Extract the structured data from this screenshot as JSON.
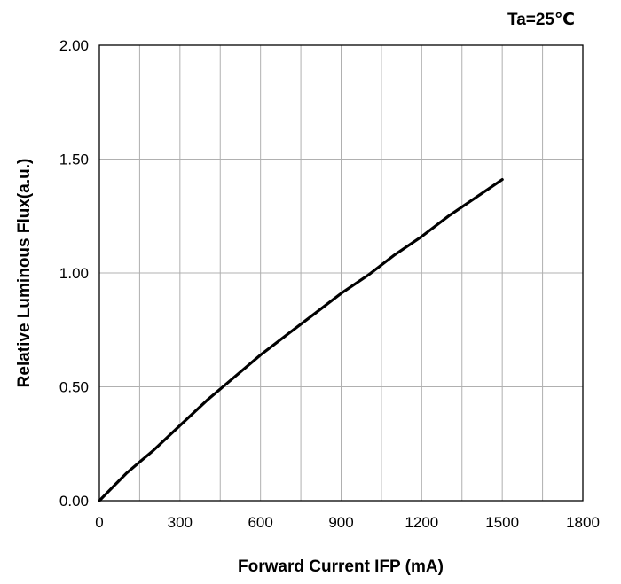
{
  "chart_data": {
    "type": "line",
    "title": "",
    "annotation": "Ta=25℃",
    "xlabel": "Forward Current IFP (mA)",
    "ylabel": "Relative Luminous Flux(a.u.)",
    "xlim": [
      0,
      1800
    ],
    "ylim": [
      0,
      2.0
    ],
    "x_ticks": [
      "0",
      "300",
      "600",
      "900",
      "1200",
      "1500",
      "1800"
    ],
    "y_ticks": [
      "0.00",
      "0.50",
      "1.00",
      "1.50",
      "2.00"
    ],
    "x_tick_values": [
      0,
      300,
      600,
      900,
      1200,
      1500,
      1800
    ],
    "y_tick_values": [
      0,
      0.5,
      1.0,
      1.5,
      2.0
    ],
    "x_minor_grid_step": 150,
    "grid": true,
    "legend": "none",
    "colors": {
      "line": "#000000",
      "grid": "#b0b0b0",
      "frame": "#000000"
    },
    "series": [
      {
        "x": [
          0,
          50,
          100,
          150,
          200,
          300,
          400,
          500,
          600,
          700,
          800,
          900,
          1000,
          1100,
          1200,
          1300,
          1400,
          1500
        ],
        "y": [
          0.0,
          0.06,
          0.12,
          0.17,
          0.22,
          0.33,
          0.44,
          0.54,
          0.64,
          0.73,
          0.82,
          0.91,
          0.99,
          1.08,
          1.16,
          1.25,
          1.33,
          1.41
        ]
      }
    ]
  }
}
